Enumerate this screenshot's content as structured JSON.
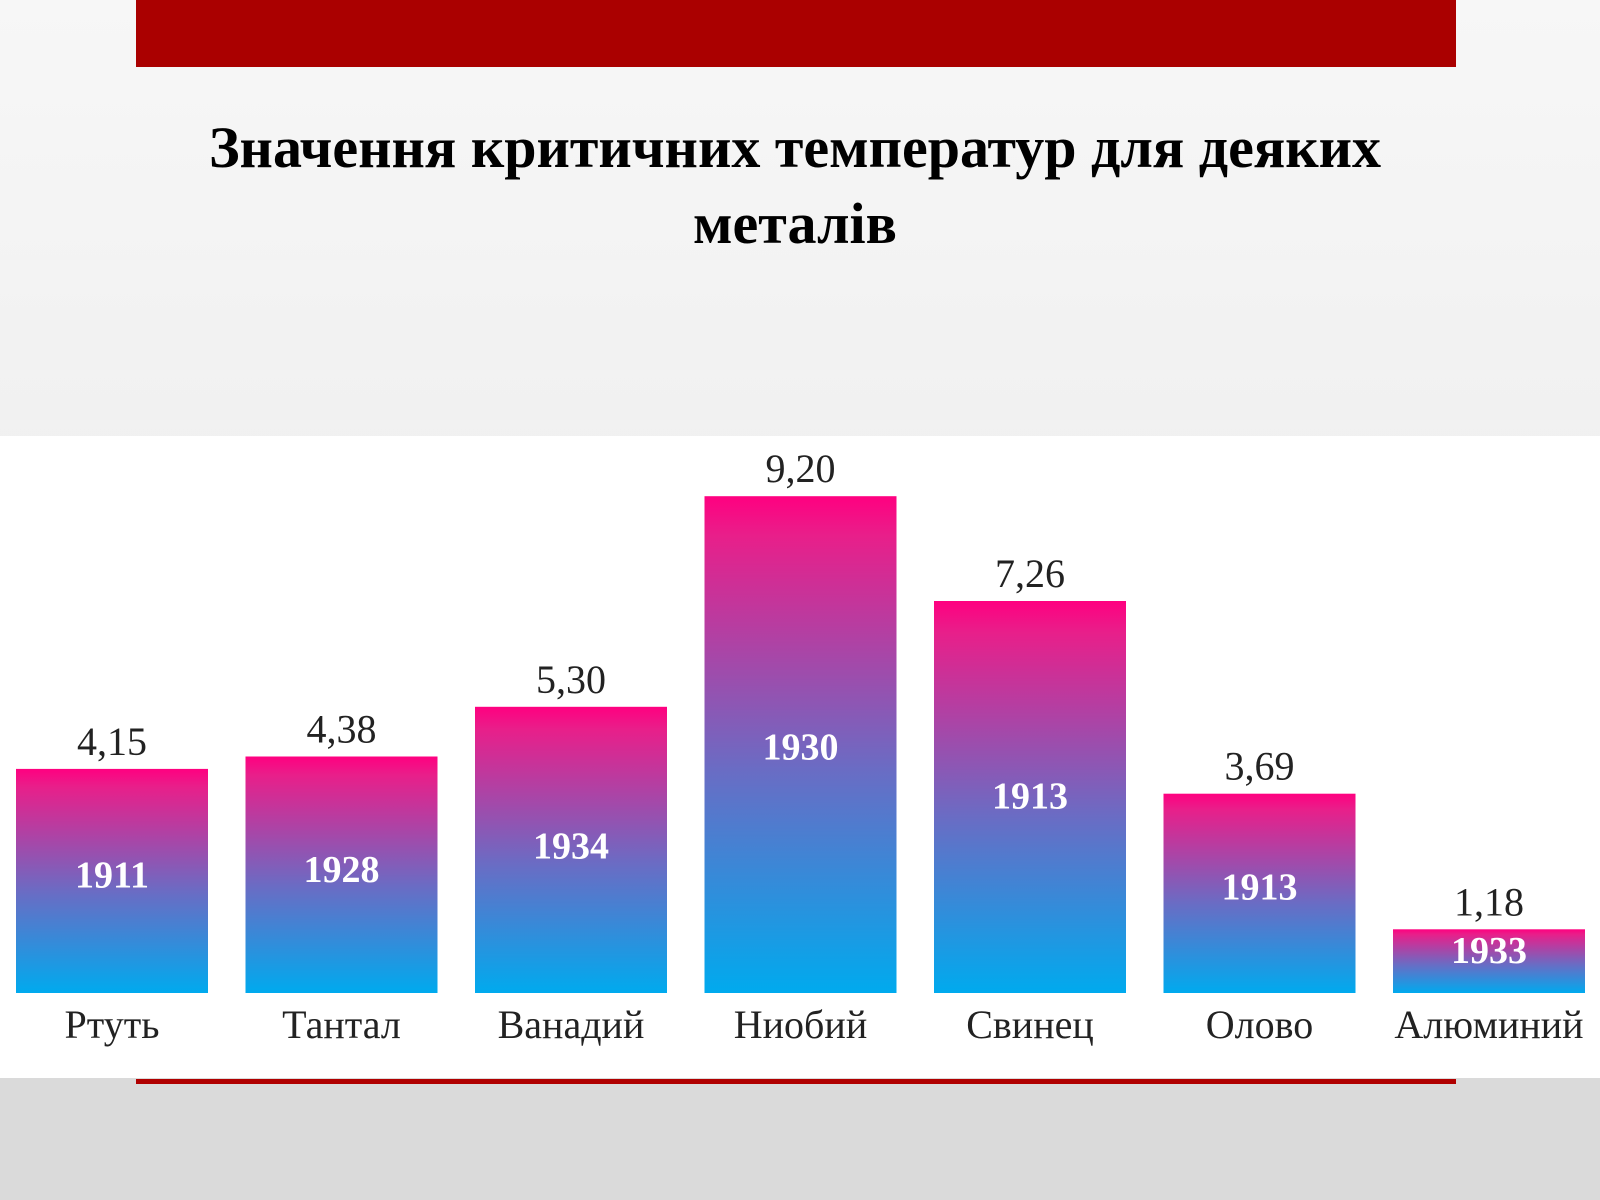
{
  "slide": {
    "title": "Значення критичних температур для деяких металів"
  },
  "colors": {
    "top_bar": "#aa0000",
    "bar_top": "#ff0080",
    "bar_mid": "#6a6cc4",
    "bar_bottom": "#00aaee",
    "year_text": "#ffffff"
  },
  "chart_data": {
    "type": "bar",
    "title": "",
    "xlabel": "",
    "ylabel": "",
    "categories": [
      "Ртуть",
      "Тантал",
      "Ванадий",
      "Ниобий",
      "Свинец",
      "Олово",
      "Алюминий"
    ],
    "values": [
      4.15,
      4.38,
      5.3,
      9.2,
      7.26,
      3.69,
      1.18
    ],
    "value_labels": [
      "4,15",
      "4,38",
      "5,30",
      "9,20",
      "7,26",
      "3,69",
      "1,18"
    ],
    "years": [
      "1911",
      "1928",
      "1934",
      "1930",
      "1913",
      "1913",
      "1933"
    ],
    "grid": false,
    "legend": "none"
  }
}
